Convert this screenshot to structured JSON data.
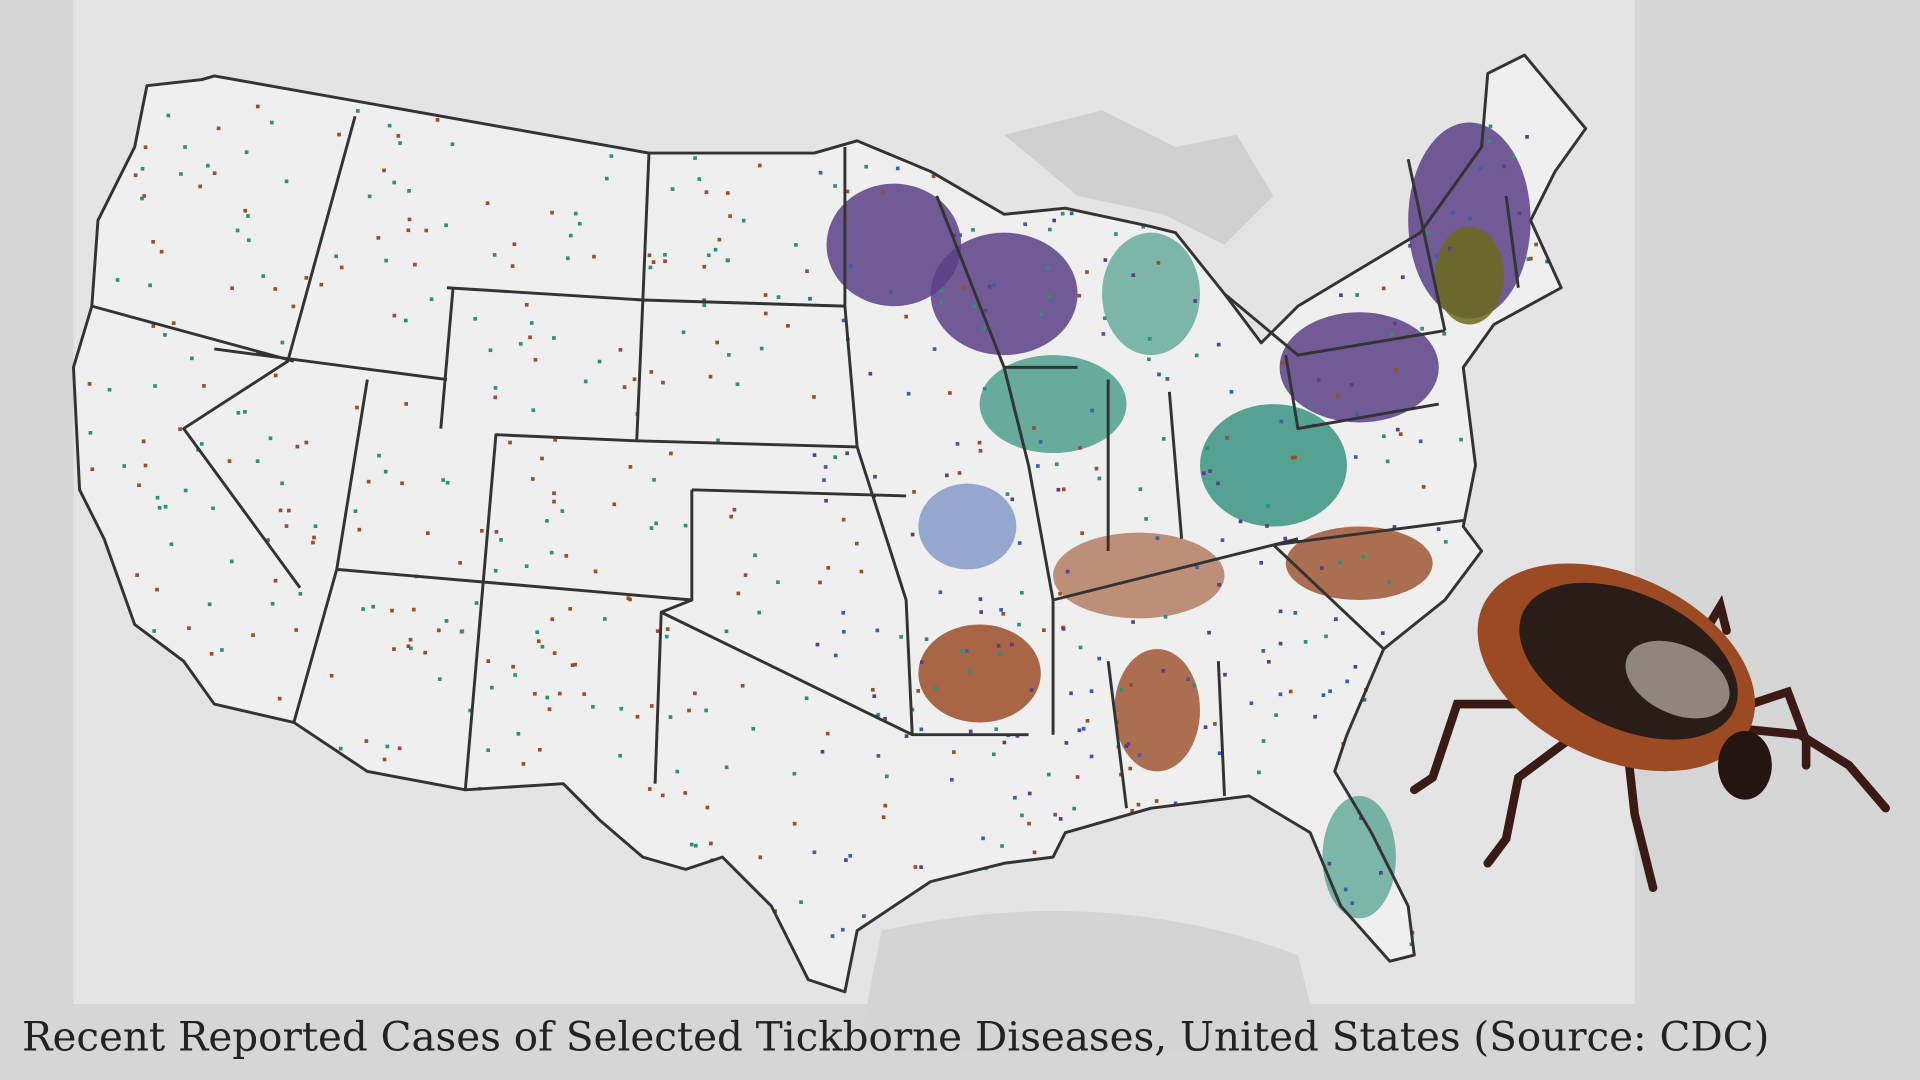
{
  "caption": "Recent Reported Cases of Selected Tickborne Diseases, United States (Source: CDC)"
}
